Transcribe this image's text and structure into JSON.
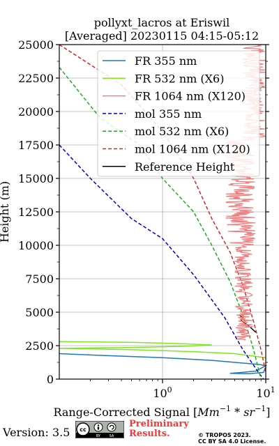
{
  "chart_data": {
    "type": "line",
    "title_line1": "pollyxt_lacros at Eriswil",
    "title_line2": "[Averaged] 20230115 04:15-05:12",
    "xlabel_text": "Range-Corrected Signal [",
    "xlabel_unit": "Mm",
    "xlabel_sup1": "−1",
    "xlabel_mid": " * ",
    "xlabel_unit2": "sr",
    "xlabel_sup2": "−1",
    "xlabel_close": "]",
    "ylabel": "Height (m)",
    "x_scale": "log",
    "xlim": [
      0.1,
      10
    ],
    "ylim": [
      0,
      25000
    ],
    "x_ticks": [
      {
        "v": 1,
        "base": "10",
        "exp": "0"
      },
      {
        "v": 10,
        "base": "10",
        "exp": "1"
      }
    ],
    "y_ticks": [
      "0",
      "2500",
      "5000",
      "7500",
      "10000",
      "12500",
      "15000",
      "17500",
      "20000",
      "22500",
      "25000"
    ],
    "grid": true,
    "legend_position": "top-right",
    "series": [
      {
        "name": "FR 355 nm",
        "color": "#1f77b4",
        "dash": "solid",
        "points": [
          [
            0.1,
            1900
          ],
          [
            0.3,
            1750
          ],
          [
            1,
            1600
          ],
          [
            3,
            1400
          ],
          [
            6,
            1200
          ],
          [
            8.5,
            1100
          ],
          [
            10,
            1000
          ],
          [
            8,
            600
          ],
          [
            5.5,
            480
          ],
          [
            4.5,
            430
          ],
          [
            7,
            400
          ],
          [
            9.5,
            500
          ],
          [
            10,
            900
          ]
        ]
      },
      {
        "name": "FR 532 nm (X6)",
        "color": "#7fe620",
        "dash": "solid",
        "points": [
          [
            0.1,
            2800
          ],
          [
            0.5,
            2750
          ],
          [
            1.5,
            2650
          ],
          [
            3,
            2550
          ],
          [
            1.5,
            2450
          ],
          [
            0.4,
            2350
          ],
          [
            0.1,
            2300
          ],
          [
            0.5,
            2200
          ],
          [
            2,
            2050
          ],
          [
            5,
            1900
          ],
          [
            8,
            1700
          ],
          [
            10,
            1600
          ]
        ]
      },
      {
        "name": "FR 1064 nm (X120)",
        "color": "#f08080",
        "dash": "solid",
        "points": []
      },
      {
        "name": "mol 355 nm",
        "color": "#0000cc",
        "dash": "dashed",
        "points": [
          [
            0.1,
            17500
          ],
          [
            0.2,
            15000
          ],
          [
            0.5,
            12000
          ],
          [
            1,
            10500
          ],
          [
            2,
            7800
          ],
          [
            4,
            4600
          ],
          [
            6,
            2200
          ],
          [
            8.5,
            500
          ],
          [
            9.5,
            0
          ]
        ]
      },
      {
        "name": "mol 532 nm (X6)",
        "color": "#22aa22",
        "dash": "dashed",
        "points": [
          [
            0.1,
            23300
          ],
          [
            0.25,
            19500
          ],
          [
            0.6,
            17500
          ],
          [
            1,
            15000
          ],
          [
            2,
            12500
          ],
          [
            3,
            10000
          ],
          [
            4.5,
            7300
          ],
          [
            6,
            4800
          ],
          [
            7.5,
            2400
          ],
          [
            9,
            0
          ]
        ]
      },
      {
        "name": "mol 1064 nm (X120)",
        "color": "#dd2222",
        "dash": "dashed",
        "points": [
          [
            0.1,
            25000
          ],
          [
            0.4,
            22000
          ],
          [
            1,
            18500
          ],
          [
            2,
            15000
          ],
          [
            3,
            12000
          ],
          [
            4.5,
            9500
          ],
          [
            6,
            7000
          ],
          [
            7.5,
            4500
          ],
          [
            9,
            2200
          ],
          [
            10,
            500
          ]
        ]
      },
      {
        "name": "Reference Height",
        "color": "#000000",
        "dash": "solid",
        "points": [
          [
            5.5,
            4800
          ],
          [
            6,
            4600
          ],
          [
            5.8,
            4400
          ],
          [
            6.2,
            4200
          ],
          [
            6.8,
            4000
          ],
          [
            7.5,
            3700
          ],
          [
            8,
            3500
          ]
        ]
      }
    ]
  },
  "footer": {
    "version": "Version: 3.5",
    "cc_label_left": "BY",
    "cc_label_right": "SA",
    "preliminary_line1": "Preliminary",
    "preliminary_line2": "Results.",
    "copyright_line1": "© TROPOS 2023.",
    "copyright_line2": "CC BY SA 4.0 License."
  }
}
